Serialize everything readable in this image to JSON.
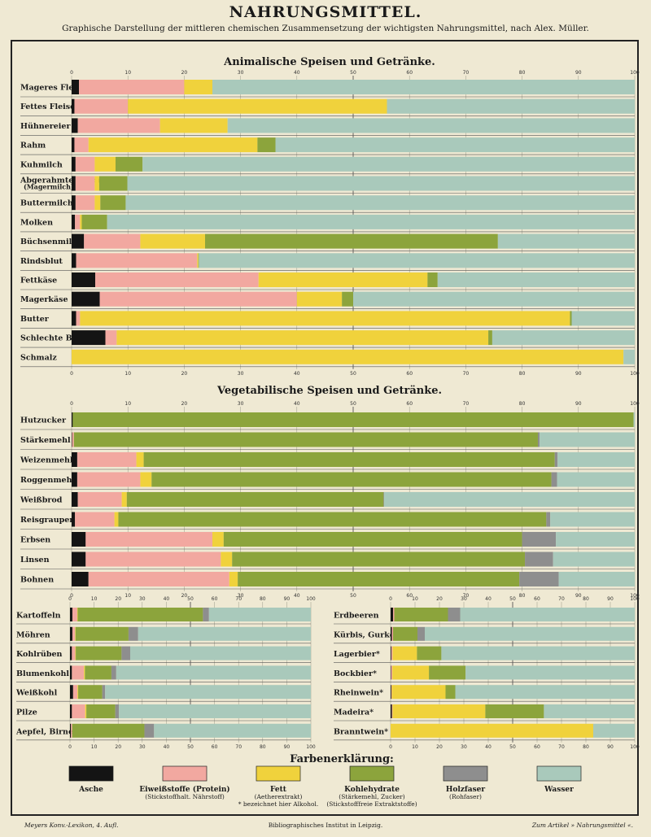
{
  "header": {
    "title": "NAHRUNGSMITTEL.",
    "subtitle": "Graphische Darstellung der mittleren chemischen Zusammensetzung der wichtigsten Nahrungsmittel, nach Alex. Müller."
  },
  "colors": {
    "asche": "#141414",
    "eiweiss": "#f2a8a0",
    "fett": "#f0d23c",
    "kohlehydrate": "#8ca43c",
    "holzfaser": "#8e8e8e",
    "wasser": "#a9c9bb"
  },
  "chart_data": [
    {
      "type": "bar",
      "stacked": true,
      "title": "Animalische Speisen und Getränke.",
      "xlim": [
        0,
        100
      ],
      "x_ticks": [
        "0",
        "10",
        "20",
        "30",
        "40",
        "50",
        "60",
        "70",
        "80",
        "90",
        "100"
      ],
      "categories": [
        "Mageres Fleisch",
        "Fettes Fleisch",
        "Hühnereier",
        "Rahm",
        "Kuhmilch",
        "Abgerahmte Milch",
        "Buttermilch",
        "Molken",
        "Büchsenmilch",
        "Rindsblut",
        "Fettkäse",
        "Magerkäse",
        "Butter",
        "Schlechte Butter",
        "Schmalz"
      ],
      "category_sublabels": [
        "",
        "",
        "",
        "",
        "",
        "(Magermilch)",
        "",
        "",
        "",
        "",
        "",
        "",
        "",
        "",
        ""
      ],
      "series": [
        {
          "name": "Asche",
          "values": [
            1.3,
            0.5,
            1.1,
            0.5,
            0.7,
            0.7,
            0.7,
            0.6,
            2.2,
            0.8,
            4.2,
            5.0,
            0.8,
            6.0,
            0
          ]
        },
        {
          "name": "Eiweißstoffe (Protein)",
          "values": [
            18.7,
            9.5,
            14.6,
            2.5,
            3.4,
            3.4,
            3.4,
            0.9,
            10.0,
            21.5,
            29.0,
            35.0,
            0.7,
            2.0,
            0
          ]
        },
        {
          "name": "Fett",
          "values": [
            5.0,
            46.0,
            12.0,
            30.0,
            3.7,
            0.8,
            1.0,
            0.3,
            11.5,
            0.2,
            30.0,
            8.0,
            87.0,
            66.0,
            98.0
          ]
        },
        {
          "name": "Kohlehydrate",
          "values": [
            0,
            0,
            0,
            3.2,
            4.8,
            5.0,
            4.5,
            4.5,
            52.0,
            0.1,
            1.8,
            2.0,
            0.3,
            0.7,
            0
          ]
        },
        {
          "name": "Holzfaser",
          "values": [
            0,
            0,
            0,
            0,
            0,
            0,
            0,
            0,
            0,
            0,
            0,
            0,
            0,
            0,
            0
          ]
        },
        {
          "name": "Wasser",
          "values": [
            75.0,
            44.0,
            72.3,
            63.8,
            87.4,
            90.1,
            90.4,
            93.7,
            24.3,
            77.4,
            35.0,
            50.0,
            11.2,
            25.3,
            2.0
          ]
        }
      ]
    },
    {
      "type": "bar",
      "stacked": true,
      "title": "Vegetabilische Speisen und Getränke.",
      "xlim": [
        0,
        100
      ],
      "x_ticks": [
        "0",
        "10",
        "20",
        "30",
        "40",
        "50",
        "60",
        "70",
        "80",
        "90",
        "100"
      ],
      "categories": [
        "Hutzucker",
        "Stärkemehl",
        "Weizenmehl",
        "Roggenmehl",
        "Weißbrod",
        "Reisgraupen",
        "Erbsen",
        "Linsen",
        "Bohnen"
      ],
      "series": [
        {
          "name": "Asche",
          "values": [
            0.2,
            0.1,
            1.0,
            1.0,
            1.1,
            0.6,
            2.5,
            2.5,
            3.0
          ]
        },
        {
          "name": "Eiweißstoffe (Protein)",
          "values": [
            0,
            0.3,
            10.5,
            11.2,
            7.8,
            7.0,
            22.5,
            24.0,
            25.0
          ]
        },
        {
          "name": "Fett",
          "values": [
            0,
            0,
            1.3,
            2.0,
            0.9,
            0.7,
            2.0,
            2.0,
            1.5
          ]
        },
        {
          "name": "Kohlehydrate",
          "values": [
            99.6,
            82.4,
            73.0,
            71.0,
            45.6,
            76.0,
            53.0,
            52.0,
            50.0
          ]
        },
        {
          "name": "Holzfaser",
          "values": [
            0,
            0.3,
            0.5,
            1.0,
            0.1,
            0.7,
            6.0,
            5.0,
            7.0
          ]
        },
        {
          "name": "Wasser",
          "values": [
            0.2,
            16.9,
            13.7,
            13.8,
            44.5,
            15.0,
            14.0,
            14.5,
            13.5
          ]
        }
      ]
    },
    {
      "type": "bar",
      "stacked": true,
      "xlim": [
        0,
        100
      ],
      "x_ticks": [
        "0",
        "10",
        "20",
        "30",
        "40",
        "50",
        "60",
        "70",
        "80",
        "90",
        "100"
      ],
      "categories": [
        "Kartoffeln",
        "Möhren",
        "Kohlrüben",
        "Blumenkohl",
        "Weißkohl",
        "Pilze",
        "Aepfel, Birnen"
      ],
      "series": [
        {
          "name": "Asche",
          "values": [
            1.0,
            1.0,
            0.8,
            0.8,
            1.3,
            0.8,
            0.4
          ]
        },
        {
          "name": "Eiweißstoffe (Protein)",
          "values": [
            2.0,
            1.1,
            1.4,
            5.0,
            1.8,
            5.5,
            0.5
          ]
        },
        {
          "name": "Fett",
          "values": [
            0.2,
            0.2,
            0.2,
            0.4,
            0.3,
            0.5,
            0
          ]
        },
        {
          "name": "Kohlehydrate",
          "values": [
            52.0,
            22.0,
            19.0,
            11.0,
            10.0,
            12.0,
            30.0
          ]
        },
        {
          "name": "Holzfaser",
          "values": [
            2.5,
            4.0,
            3.6,
            2.0,
            1.2,
            1.5,
            4.0
          ]
        },
        {
          "name": "Wasser",
          "values": [
            42.3,
            71.7,
            75.0,
            80.8,
            85.4,
            79.7,
            65.1
          ]
        }
      ]
    },
    {
      "type": "bar",
      "stacked": true,
      "xlim": [
        0,
        100
      ],
      "x_ticks": [
        "0",
        "10",
        "20",
        "30",
        "40",
        "50",
        "60",
        "70",
        "80",
        "90",
        "100"
      ],
      "categories": [
        "Erdbeeren",
        "Kürbis, Gurken",
        "Lagerbier*",
        "Bockbier*",
        "Rheinwein*",
        "Madeira*",
        "Branntwein*"
      ],
      "series": [
        {
          "name": "Asche",
          "values": [
            1.0,
            0.5,
            0.3,
            0.2,
            0.3,
            0.5,
            0
          ]
        },
        {
          "name": "Eiweißstoffe (Protein)",
          "values": [
            0.5,
            0.5,
            0.5,
            0.5,
            0.2,
            0.3,
            0
          ]
        },
        {
          "name": "Fett",
          "values": [
            0,
            0,
            10.0,
            15.0,
            22.0,
            38.0,
            83.0
          ]
        },
        {
          "name": "Kohlehydrate",
          "values": [
            22.0,
            10.0,
            10.0,
            15.0,
            4.0,
            24.0,
            0
          ]
        },
        {
          "name": "Holzfaser",
          "values": [
            5.0,
            3.0,
            0,
            0,
            0,
            0,
            0
          ]
        },
        {
          "name": "Wasser",
          "values": [
            71.5,
            86.0,
            79.2,
            69.3,
            73.5,
            37.2,
            17.0
          ]
        }
      ]
    }
  ],
  "legend": {
    "title": "Farbenerklärung:",
    "items": [
      {
        "key": "asche",
        "label": "Asche",
        "sub1": "",
        "sub2": ""
      },
      {
        "key": "eiweiss",
        "label": "Eiweißstoffe (Protein)",
        "sub1": "(Stickstoffhalt. Nährstoff)",
        "sub2": ""
      },
      {
        "key": "fett",
        "label": "Fett",
        "sub1": "(Aetherextrakt)",
        "sub2": "* bezeichnet hier Alkohol."
      },
      {
        "key": "kohlehydrate",
        "label": "Kohlehydrate",
        "sub1": "(Stärkemehl, Zucker)",
        "sub2": "(Stickstofffreie Extraktstoffe)"
      },
      {
        "key": "holzfaser",
        "label": "Holzfaser",
        "sub1": "(Rohfaser)",
        "sub2": ""
      },
      {
        "key": "wasser",
        "label": "Wasser",
        "sub1": "",
        "sub2": ""
      }
    ]
  },
  "footer": {
    "left": "Meyers Konv.-Lexikon, 4. Aufl.",
    "center": "Bibliographisches Institut in Leipzig.",
    "right": "Zum Artikel » Nahrungsmittel «."
  }
}
